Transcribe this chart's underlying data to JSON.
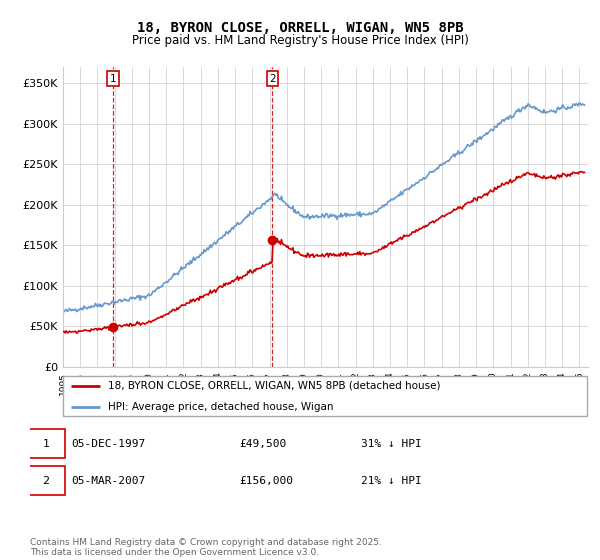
{
  "title": "18, BYRON CLOSE, ORRELL, WIGAN, WN5 8PB",
  "subtitle": "Price paid vs. HM Land Registry's House Price Index (HPI)",
  "ylim": [
    0,
    370000
  ],
  "xlim_start": 1995.0,
  "xlim_end": 2025.5,
  "sale1_date": 1997.92,
  "sale1_price": 49500,
  "sale1_label": "1",
  "sale2_date": 2007.17,
  "sale2_price": 156000,
  "sale2_label": "2",
  "legend_line1": "18, BYRON CLOSE, ORRELL, WIGAN, WN5 8PB (detached house)",
  "legend_line2": "HPI: Average price, detached house, Wigan",
  "footer": "Contains HM Land Registry data © Crown copyright and database right 2025.\nThis data is licensed under the Open Government Licence v3.0.",
  "red_color": "#cc0000",
  "blue_color": "#6699cc",
  "background_color": "#ffffff",
  "grid_color": "#cccccc"
}
